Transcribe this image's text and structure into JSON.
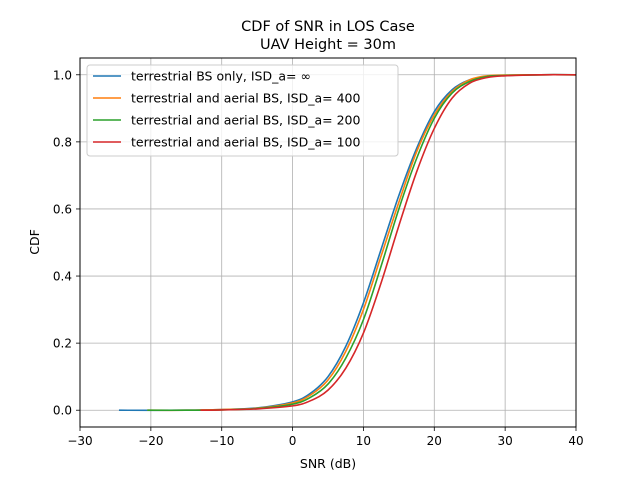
{
  "chart_data": {
    "type": "line",
    "title": "CDF of SNR in LOS Case",
    "subtitle": "UAV Height = 30m",
    "xlabel": "SNR (dB)",
    "ylabel": "CDF",
    "xlim": [
      -30,
      40
    ],
    "ylim": [
      -0.05,
      1.05
    ],
    "xticks": [
      -30,
      -20,
      -10,
      0,
      10,
      20,
      30,
      40
    ],
    "yticks": [
      0.0,
      0.2,
      0.4,
      0.6,
      0.8,
      1.0
    ],
    "xtick_labels": [
      "−30",
      "−20",
      "−10",
      "0",
      "10",
      "20",
      "30",
      "40"
    ],
    "ytick_labels": [
      "0.0",
      "0.2",
      "0.4",
      "0.6",
      "0.8",
      "1.0"
    ],
    "grid": true,
    "legend_position": "top-left",
    "series": [
      {
        "name": "terrestrial BS only, ISD_a= ∞",
        "color": "#1f77b4",
        "x": [
          -24.5,
          -15,
          -10,
          -5,
          0,
          2.5,
          5,
          7.5,
          10,
          12.5,
          15,
          17.5,
          20,
          22.5,
          25,
          27.5,
          30,
          35,
          40
        ],
        "y": [
          0.0,
          0.0,
          0.002,
          0.007,
          0.025,
          0.05,
          0.1,
          0.19,
          0.32,
          0.48,
          0.64,
          0.78,
          0.89,
          0.955,
          0.985,
          0.995,
          0.998,
          1.0,
          1.0
        ]
      },
      {
        "name": "terrestrial and aerial BS,  ISD_a= 400",
        "color": "#ff7f0e",
        "x": [
          -20.5,
          -15,
          -10,
          -5,
          0,
          2.5,
          5,
          7.5,
          10,
          12.5,
          15,
          17.5,
          20,
          22.5,
          25,
          27.5,
          30,
          35,
          40
        ],
        "y": [
          0.0,
          0.0,
          0.002,
          0.006,
          0.022,
          0.045,
          0.09,
          0.175,
          0.3,
          0.46,
          0.62,
          0.77,
          0.88,
          0.95,
          0.985,
          0.997,
          0.999,
          1.0,
          1.0
        ]
      },
      {
        "name": "terrestrial and aerial BS,  ISD_a= 200",
        "color": "#2ca02c",
        "x": [
          -20.5,
          -15,
          -10,
          -5,
          0,
          2.5,
          5,
          7.5,
          10,
          12.5,
          15,
          17.5,
          20,
          22.5,
          25,
          27.5,
          30,
          35,
          40
        ],
        "y": [
          0.0,
          0.0,
          0.001,
          0.005,
          0.018,
          0.038,
          0.078,
          0.155,
          0.27,
          0.43,
          0.6,
          0.75,
          0.87,
          0.945,
          0.98,
          0.995,
          0.998,
          1.0,
          1.0
        ]
      },
      {
        "name": "terrestrial and aerial BS,  ISD_a= 100",
        "color": "#d62728",
        "x": [
          -13,
          -10,
          -5,
          0,
          2.5,
          5,
          7.5,
          10,
          12.5,
          15,
          17.5,
          20,
          22.5,
          25,
          27.5,
          30,
          35,
          40
        ],
        "y": [
          0.0,
          0.001,
          0.004,
          0.013,
          0.028,
          0.06,
          0.125,
          0.23,
          0.38,
          0.55,
          0.71,
          0.84,
          0.93,
          0.975,
          0.992,
          0.997,
          1.0,
          1.0
        ]
      }
    ]
  }
}
